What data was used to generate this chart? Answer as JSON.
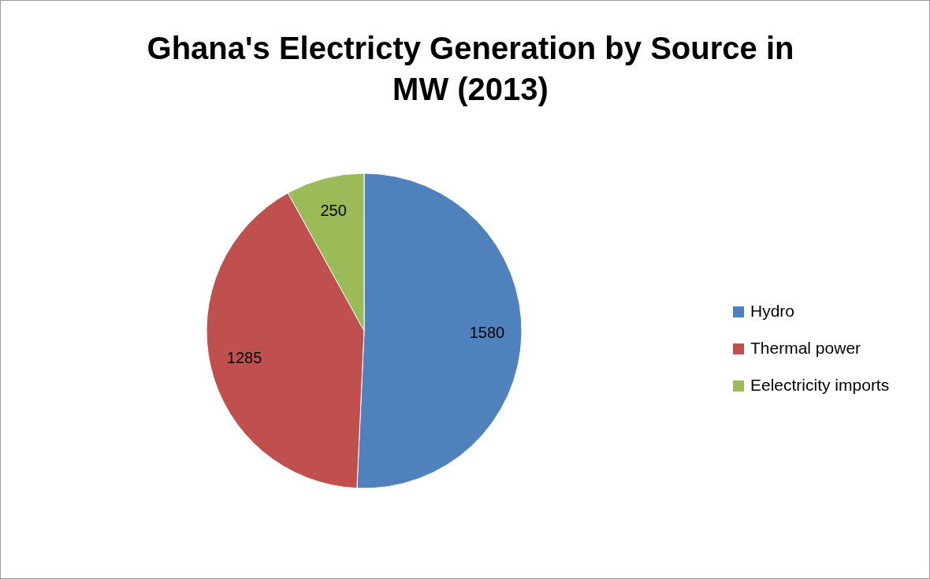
{
  "chart_data": {
    "type": "pie",
    "title": "Ghana's Electricty Generation by Source in MW (2013)",
    "categories": [
      "Hydro",
      "Thermal power",
      "Eelectricity imports"
    ],
    "values": [
      1580,
      1285,
      250
    ],
    "colors": [
      "#4f81bd",
      "#c0504d",
      "#9bbb59"
    ],
    "data_labels": true,
    "legend": "right"
  }
}
